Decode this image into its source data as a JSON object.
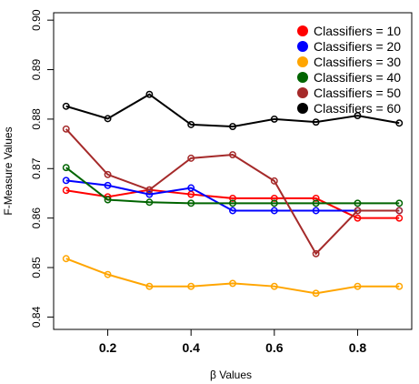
{
  "chart_data": {
    "type": "line",
    "xlabel": "β Values",
    "ylabel": "F-Measure Values",
    "xlim": [
      0.07,
      0.93
    ],
    "ylim": [
      0.8375,
      0.9015
    ],
    "x_ticks": [
      {
        "value": 0.2,
        "label": "0.2"
      },
      {
        "value": 0.4,
        "label": "0.4"
      },
      {
        "value": 0.6,
        "label": "0.6"
      },
      {
        "value": 0.8,
        "label": "0.8"
      }
    ],
    "y_ticks": [
      {
        "value": 0.84,
        "label": "0.84"
      },
      {
        "value": 0.85,
        "label": "0.85"
      },
      {
        "value": 0.86,
        "label": "0.86"
      },
      {
        "value": 0.87,
        "label": "0.87"
      },
      {
        "value": 0.88,
        "label": "0.88"
      },
      {
        "value": 0.89,
        "label": "0.89"
      },
      {
        "value": 0.9,
        "label": "0.90"
      }
    ],
    "x": [
      0.1,
      0.2,
      0.3,
      0.4,
      0.5,
      0.6,
      0.7,
      0.8,
      0.9
    ],
    "grid": false,
    "legend_position": "top-right",
    "series": [
      {
        "name": "Classifiers = 10",
        "color": "#ff0000",
        "values": [
          0.8656,
          0.8643,
          0.8657,
          0.8648,
          0.864,
          0.864,
          0.864,
          0.86,
          0.86
        ]
      },
      {
        "name": "Classifiers = 20",
        "color": "#0000ff",
        "values": [
          0.8676,
          0.8666,
          0.8648,
          0.8661,
          0.8615,
          0.8615,
          0.8615,
          0.8615,
          0.8615
        ]
      },
      {
        "name": "Classifiers = 30",
        "color": "#ffa500",
        "values": [
          0.8518,
          0.8486,
          0.8462,
          0.8462,
          0.8468,
          0.8462,
          0.8448,
          0.8462,
          0.8462
        ]
      },
      {
        "name": "Classifiers = 40",
        "color": "#006400",
        "values": [
          0.8702,
          0.8637,
          0.8632,
          0.863,
          0.863,
          0.863,
          0.863,
          0.863,
          0.863
        ]
      },
      {
        "name": "Classifiers = 50",
        "color": "#a52a2a",
        "values": [
          0.878,
          0.8688,
          0.8657,
          0.8721,
          0.8728,
          0.8675,
          0.8528,
          0.8615,
          0.8615
        ]
      },
      {
        "name": "Classifiers = 60",
        "color": "#000000",
        "values": [
          0.8826,
          0.8801,
          0.885,
          0.8789,
          0.8785,
          0.88,
          0.8794,
          0.8807,
          0.8792
        ]
      }
    ]
  }
}
